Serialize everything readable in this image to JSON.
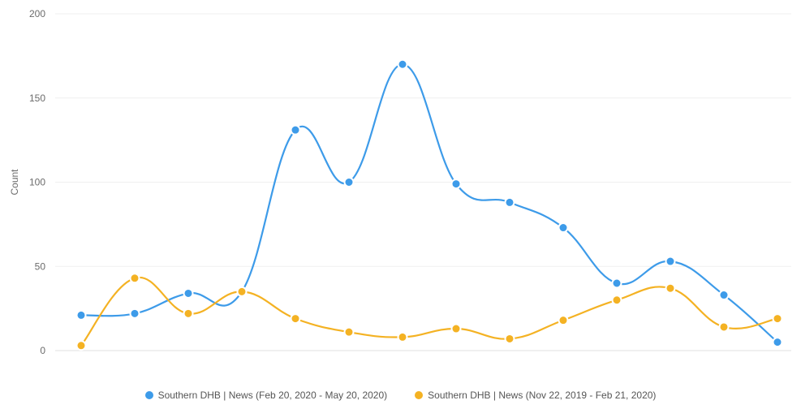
{
  "chart_data": {
    "type": "line",
    "ylabel": "Count",
    "ylim": [
      0,
      200
    ],
    "yticks": [
      "0",
      "50",
      "100",
      "150",
      "200"
    ],
    "grid": true,
    "legend_position": "bottom",
    "x": [
      1,
      2,
      3,
      4,
      5,
      6,
      7,
      8,
      9,
      10,
      11,
      12,
      13,
      14
    ],
    "series": [
      {
        "name": "Southern DHB | News (Feb 20, 2020 - May 20, 2020)",
        "color": "#3d9be9",
        "values": [
          21,
          22,
          34,
          35,
          131,
          100,
          170,
          99,
          88,
          73,
          40,
          53,
          33,
          5
        ]
      },
      {
        "name": "Southern DHB | News (Nov 22, 2019 - Feb 21, 2020)",
        "color": "#f4b223",
        "values": [
          3,
          43,
          22,
          35,
          19,
          11,
          8,
          13,
          7,
          18,
          30,
          37,
          14,
          19
        ]
      }
    ]
  }
}
